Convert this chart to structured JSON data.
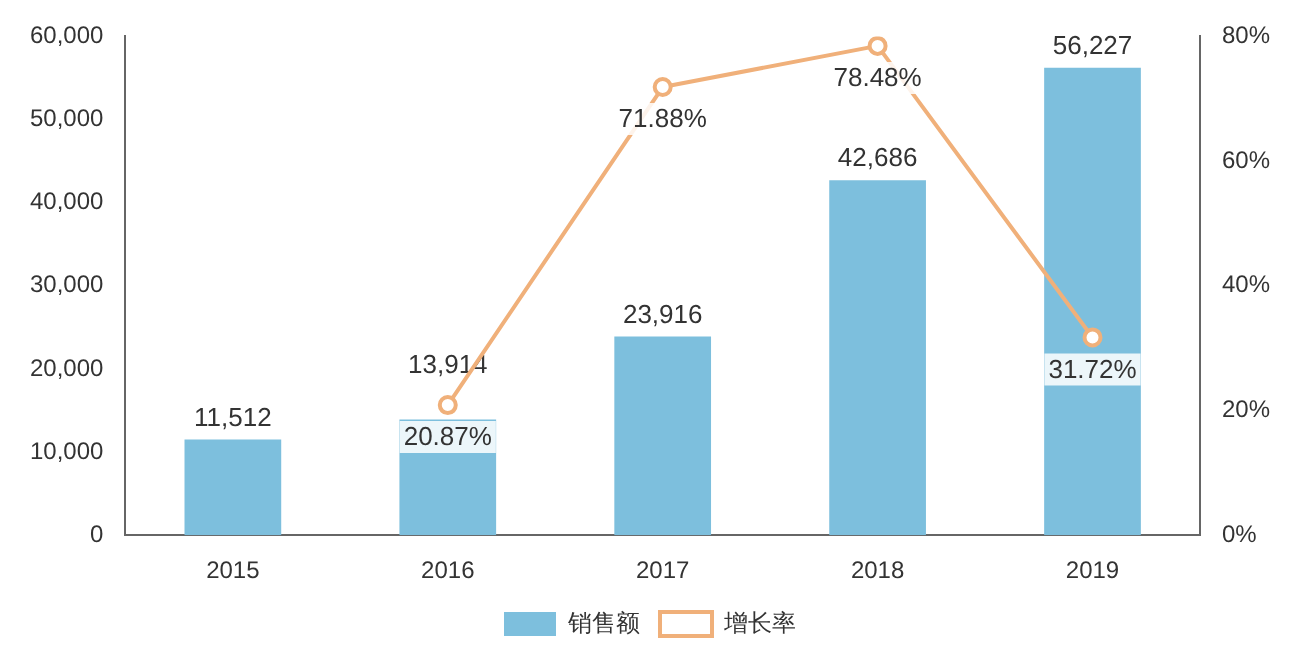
{
  "chart_data": {
    "type": "bar",
    "categories": [
      "2015",
      "2016",
      "2017",
      "2018",
      "2019"
    ],
    "series": [
      {
        "name": "销售额",
        "color": "#7dbfdd",
        "values": [
          11512,
          13914,
          23916,
          42686,
          56227
        ],
        "value_labels": [
          "11,512",
          "13,914",
          "23,916",
          "42,686",
          "56,227"
        ]
      },
      {
        "name": "增长率",
        "type": "line",
        "axis": "y2",
        "color": "#f0b07a",
        "values": [
          null,
          20.87,
          71.88,
          78.48,
          31.72
        ],
        "value_labels": [
          null,
          "20.87%",
          "71.88%",
          "78.48%",
          "31.72%"
        ]
      }
    ],
    "ylim": [
      0,
      60000
    ],
    "yticks": [
      0,
      {
        "value": 10000,
        "label": "10,000"
      },
      {
        "value": 20000,
        "label": "20,000"
      },
      {
        "value": 30000,
        "label": "30,000"
      },
      {
        "value": 40000,
        "label": "40,000"
      },
      {
        "value": 50000,
        "label": "50,000"
      },
      {
        "value": 60000,
        "label": "60,000"
      }
    ],
    "y2lim": [
      0,
      80
    ],
    "y2ticks": [
      {
        "value": 0,
        "label": "0%"
      },
      {
        "value": 20,
        "label": "20%"
      },
      {
        "value": 40,
        "label": "40%"
      },
      {
        "value": 60,
        "label": "60%"
      },
      {
        "value": 80,
        "label": "80%"
      }
    ],
    "legend": "bottom",
    "grid": false,
    "marker": "circle",
    "line_style": "solid"
  }
}
